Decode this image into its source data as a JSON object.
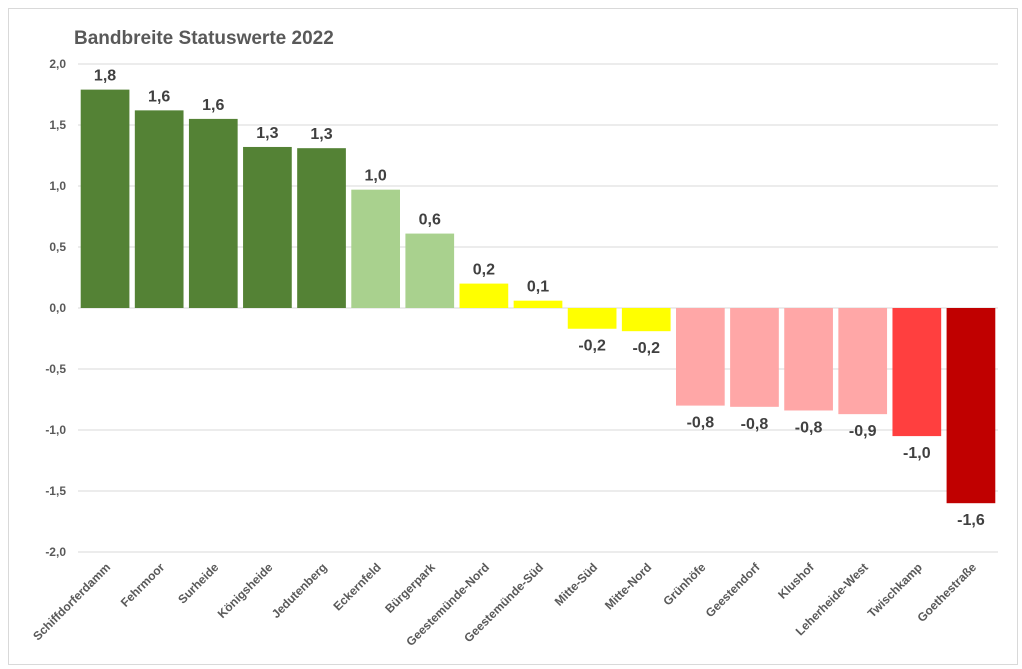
{
  "chart_data": {
    "type": "bar",
    "title": "Bandbreite Statuswerte 2022",
    "xlabel": "",
    "ylabel": "",
    "ylim": [
      -2.0,
      2.0
    ],
    "yticks": [
      "2,0",
      "1,5",
      "1,0",
      "0,5",
      "0,0",
      "-0,5",
      "-1,0",
      "-1,5",
      "-2,0"
    ],
    "ytick_values": [
      2.0,
      1.5,
      1.0,
      0.5,
      0.0,
      -0.5,
      -1.0,
      -1.5,
      -2.0
    ],
    "grid": true,
    "legend": "none",
    "categories": [
      "Schiffdorferdamm",
      "Fehrmoor",
      "Surheide",
      "Königsheide",
      "Jedutenberg",
      "Eckernfeld",
      "Bürgerpark",
      "Geestemünde-Nord",
      "Geestemünde-Süd",
      "Mitte-Süd",
      "Mitte-Nord",
      "Grünhöfe",
      "Geestendorf",
      "Klushof",
      "Leherheide-West",
      "Twischkamp",
      "Goethestraße"
    ],
    "values": [
      1.79,
      1.62,
      1.55,
      1.32,
      1.31,
      0.97,
      0.61,
      0.2,
      0.06,
      -0.17,
      -0.19,
      -0.8,
      -0.81,
      -0.84,
      -0.87,
      -1.05,
      -1.6
    ],
    "data_labels": [
      "1,8",
      "1,6",
      "1,6",
      "1,3",
      "1,3",
      "1,0",
      "0,6",
      "0,2",
      "0,1",
      "-0,2",
      "-0,2",
      "-0,8",
      "-0,8",
      "-0,8",
      "-0,9",
      "-1,0",
      "-1,6"
    ],
    "colors": [
      "#548235",
      "#548235",
      "#548235",
      "#548235",
      "#548235",
      "#a9d18e",
      "#a9d18e",
      "#ffff00",
      "#ffff00",
      "#ffff00",
      "#ffff00",
      "#ffa7a7",
      "#ffa7a7",
      "#ffa7a7",
      "#ffa7a7",
      "#ff3f3f",
      "#c00000"
    ]
  }
}
